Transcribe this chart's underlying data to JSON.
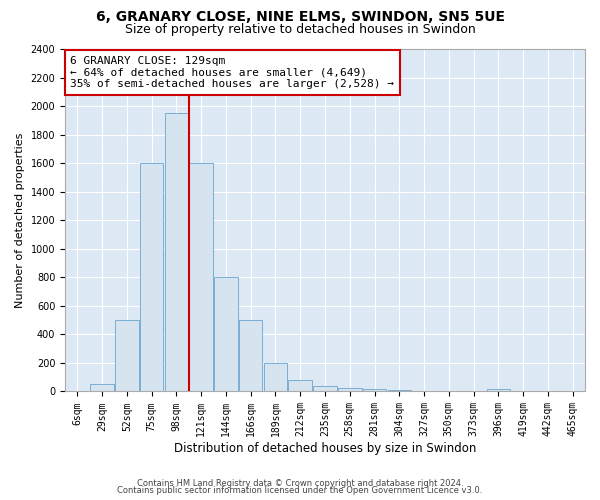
{
  "title1": "6, GRANARY CLOSE, NINE ELMS, SWINDON, SN5 5UE",
  "title2": "Size of property relative to detached houses in Swindon",
  "xlabel": "Distribution of detached houses by size in Swindon",
  "ylabel": "Number of detached properties",
  "bar_color": "#d6e4f0",
  "bar_edge_color": "#7aaed4",
  "vline_x_index": 5,
  "vline_color": "#cc0000",
  "annotation_title": "6 GRANARY CLOSE: 129sqm",
  "annotation_line1": "← 64% of detached houses are smaller (4,649)",
  "annotation_line2": "35% of semi-detached houses are larger (2,528) →",
  "annotation_box_color": "#cc0000",
  "categories": [
    "6sqm",
    "29sqm",
    "52sqm",
    "75sqm",
    "98sqm",
    "121sqm",
    "144sqm",
    "166sqm",
    "189sqm",
    "212sqm",
    "235sqm",
    "258sqm",
    "281sqm",
    "304sqm",
    "327sqm",
    "350sqm",
    "373sqm",
    "396sqm",
    "419sqm",
    "442sqm",
    "465sqm"
  ],
  "values": [
    0,
    50,
    500,
    1600,
    1950,
    1600,
    800,
    500,
    200,
    80,
    40,
    25,
    15,
    10,
    5,
    5,
    0,
    20,
    0,
    0,
    0
  ],
  "ylim": [
    0,
    2400
  ],
  "yticks": [
    0,
    200,
    400,
    600,
    800,
    1000,
    1200,
    1400,
    1600,
    1800,
    2000,
    2200,
    2400
  ],
  "footer1": "Contains HM Land Registry data © Crown copyright and database right 2024.",
  "footer2": "Contains public sector information licensed under the Open Government Licence v3.0.",
  "fig_bg_color": "#ffffff",
  "plot_bg_color": "#dce9f5",
  "title_fontsize": 10,
  "subtitle_fontsize": 9,
  "annotation_fontsize": 8,
  "tick_fontsize": 7,
  "ylabel_fontsize": 8,
  "xlabel_fontsize": 8.5
}
